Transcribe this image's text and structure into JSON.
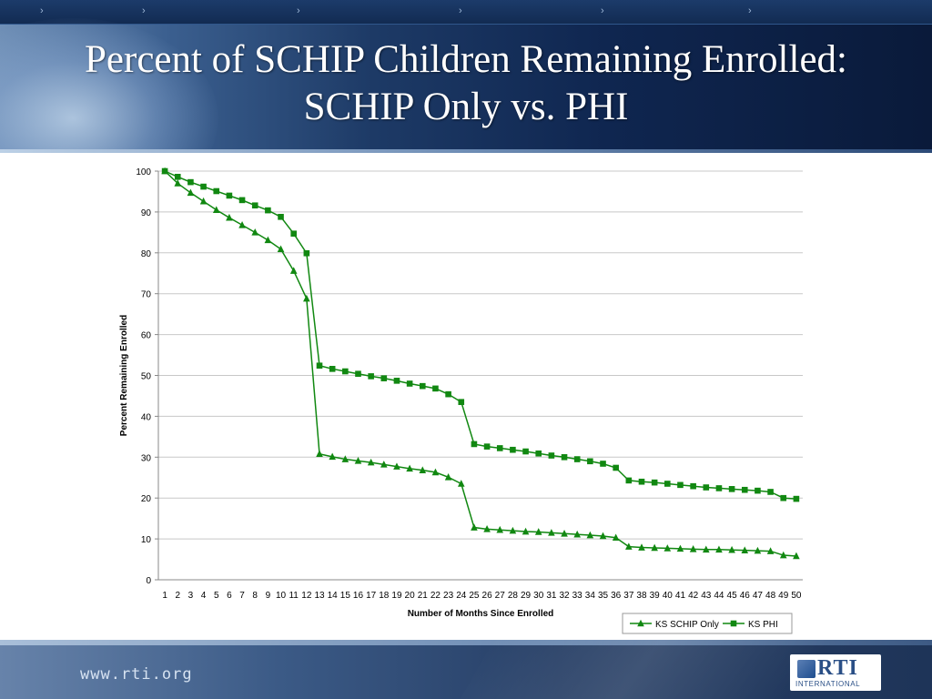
{
  "slide": {
    "title_line1": "Percent of SCHIP Children Remaining Enrolled:",
    "title_line2": "SCHIP Only vs. PHI",
    "footer_url": "www.rti.org",
    "logo_text": "RTI",
    "logo_subtext": "INTERNATIONAL"
  },
  "colors": {
    "series": "#118811",
    "grid": "#c8c8c8",
    "axis": "#888888"
  },
  "chart_data": {
    "type": "line",
    "xlabel": "Number of Months Since Enrolled",
    "ylabel": "Percent Remaining Enrolled",
    "ylim": [
      0,
      100
    ],
    "yticks": [
      0,
      10,
      20,
      30,
      40,
      50,
      60,
      70,
      80,
      90,
      100
    ],
    "grid": true,
    "legend_position": "bottom-right",
    "x": [
      1,
      2,
      3,
      4,
      5,
      6,
      7,
      8,
      9,
      10,
      11,
      12,
      13,
      14,
      15,
      16,
      17,
      18,
      19,
      20,
      21,
      22,
      23,
      24,
      25,
      26,
      27,
      28,
      29,
      30,
      31,
      32,
      33,
      34,
      35,
      36,
      37,
      38,
      39,
      40,
      41,
      42,
      43,
      44,
      45,
      46,
      47,
      48,
      49,
      50
    ],
    "series": [
      {
        "name": "KS SCHIP Only",
        "marker": "triangle",
        "values": [
          100,
          97,
          94.7,
          92.6,
          90.5,
          88.6,
          86.8,
          85,
          83.1,
          80.9,
          75.6,
          68.8,
          30.8,
          30.1,
          29.5,
          29.1,
          28.7,
          28.2,
          27.7,
          27.2,
          26.8,
          26.3,
          25.1,
          23.5,
          12.8,
          12.4,
          12.2,
          12,
          11.8,
          11.7,
          11.5,
          11.3,
          11.1,
          10.9,
          10.7,
          10.3,
          8.1,
          7.9,
          7.8,
          7.7,
          7.6,
          7.5,
          7.4,
          7.4,
          7.3,
          7.2,
          7.1,
          7,
          6,
          5.8
        ]
      },
      {
        "name": "KS PHI",
        "marker": "square",
        "values": [
          100,
          98.6,
          97.3,
          96.2,
          95.1,
          94,
          92.9,
          91.6,
          90.4,
          88.8,
          84.7,
          79.9,
          52.4,
          51.6,
          51,
          50.4,
          49.8,
          49.3,
          48.7,
          48,
          47.4,
          46.8,
          45.4,
          43.5,
          33.2,
          32.6,
          32.2,
          31.8,
          31.4,
          30.9,
          30.4,
          30,
          29.5,
          29,
          28.4,
          27.4,
          24.3,
          24,
          23.8,
          23.5,
          23.2,
          22.9,
          22.6,
          22.4,
          22.2,
          22,
          21.8,
          21.5,
          20,
          19.8
        ]
      }
    ]
  }
}
